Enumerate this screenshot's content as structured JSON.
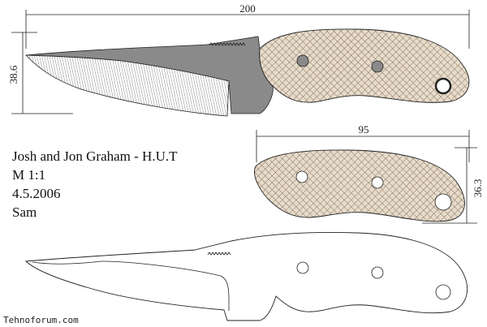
{
  "dimensions": {
    "total_length": "200",
    "blade_height": "38.6",
    "handle_length": "95",
    "handle_height": "36.3"
  },
  "info": {
    "makers": "Josh and Jon Graham - H.U.T",
    "scale": "M 1:1",
    "date": "4.5.2006",
    "model_name": "Sam"
  },
  "watermark": "Tehnoforum.com",
  "colors": {
    "blade_dark": "#8a8a8a",
    "handle_fill": "#e6dccb",
    "handle_pattern": "#7a5a45",
    "line": "#222222"
  }
}
